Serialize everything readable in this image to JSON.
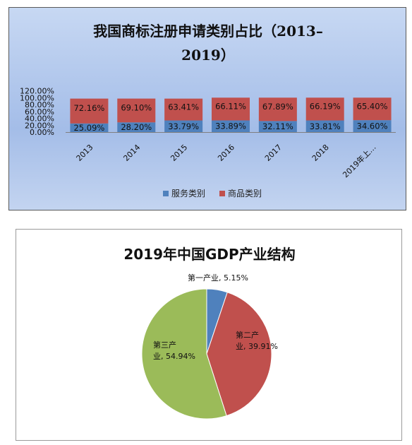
{
  "chart_data": [
    {
      "type": "bar",
      "stacked": true,
      "percent_stacked": true,
      "title": "我国商标注册申请类别占比（2013–2019）",
      "title_lines": [
        "我国商标注册申请类别占比（2013–",
        "2019）"
      ],
      "categories": [
        "2013",
        "2014",
        "2015",
        "2016",
        "2017",
        "2018",
        "2019年上…"
      ],
      "series": [
        {
          "name": "服务类别",
          "color": "#4f81bd",
          "values": [
            25.09,
            28.2,
            33.79,
            33.89,
            32.11,
            33.81,
            34.6
          ],
          "labels": [
            "25.09%",
            "28.20%",
            "33.79%",
            "33.89%",
            "32.11%",
            "33.81%",
            "34.60%"
          ]
        },
        {
          "name": "商品类别",
          "color": "#c0504d",
          "values": [
            72.16,
            69.1,
            63.41,
            66.11,
            67.89,
            66.19,
            65.4
          ],
          "labels": [
            "72.16%",
            "69.10%",
            "63.41%",
            "66.11%",
            "67.89%",
            "66.19%",
            "65.40%"
          ]
        }
      ],
      "yticks": [
        "0.00%",
        "20.00%",
        "40.00%",
        "60.00%",
        "80.00%",
        "100.00%",
        "120.00%"
      ],
      "ylim": [
        0,
        120
      ],
      "grid": false,
      "legend": "bottom"
    },
    {
      "type": "pie",
      "title": "2019年中国GDP产业结构",
      "slices": [
        {
          "name": "第一产业",
          "value": 5.15,
          "label_lines": [
            "第一产业, 5.15%"
          ],
          "color": "#4f81bd"
        },
        {
          "name": "第二产业",
          "value": 39.91,
          "label_lines": [
            "第二产",
            "业, 39.91%"
          ],
          "color": "#c0504d"
        },
        {
          "name": "第三产业",
          "value": 54.94,
          "label_lines": [
            "第三产",
            "业, 54.94%"
          ],
          "color": "#9bbb59"
        }
      ],
      "legend": "none"
    }
  ]
}
